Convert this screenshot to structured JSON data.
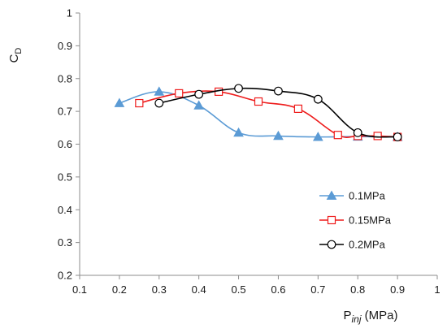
{
  "chart_data": {
    "type": "line",
    "title": "",
    "xlabel": {
      "main": "P",
      "sub": "inj",
      "unit": " (MPa)"
    },
    "ylabel": {
      "main": "C",
      "sub": "D"
    },
    "xlim": [
      0.1,
      1.0
    ],
    "ylim": [
      0.2,
      1.0
    ],
    "xticks": [
      "0.1",
      "0.2",
      "0.3",
      "0.4",
      "0.5",
      "0.6",
      "0.7",
      "0.8",
      "0.9",
      "1"
    ],
    "yticks": [
      "0.2",
      "0.3",
      "0.4",
      "0.5",
      "0.6",
      "0.7",
      "0.8",
      "0.9",
      "1"
    ],
    "grid": false,
    "legend_position": "bottom-right",
    "series": [
      {
        "name": "0.1MPa",
        "color": "#5b9bd5",
        "marker": "triangle",
        "x": [
          0.2,
          0.3,
          0.4,
          0.5,
          0.6,
          0.7,
          0.8,
          0.9
        ],
        "y": [
          0.725,
          0.76,
          0.718,
          0.635,
          0.625,
          0.622,
          0.623,
          0.622
        ]
      },
      {
        "name": "0.15MPa",
        "color": "#ee1c1c",
        "marker": "square",
        "x": [
          0.25,
          0.35,
          0.45,
          0.55,
          0.65,
          0.75,
          0.8,
          0.85,
          0.9
        ],
        "y": [
          0.725,
          0.755,
          0.76,
          0.73,
          0.708,
          0.628,
          0.625,
          0.625,
          0.622
        ]
      },
      {
        "name": "0.2MPa",
        "color": "#000000",
        "marker": "circle",
        "x": [
          0.3,
          0.4,
          0.5,
          0.6,
          0.7,
          0.8,
          0.9
        ],
        "y": [
          0.725,
          0.752,
          0.77,
          0.762,
          0.737,
          0.635,
          0.622
        ]
      }
    ]
  }
}
